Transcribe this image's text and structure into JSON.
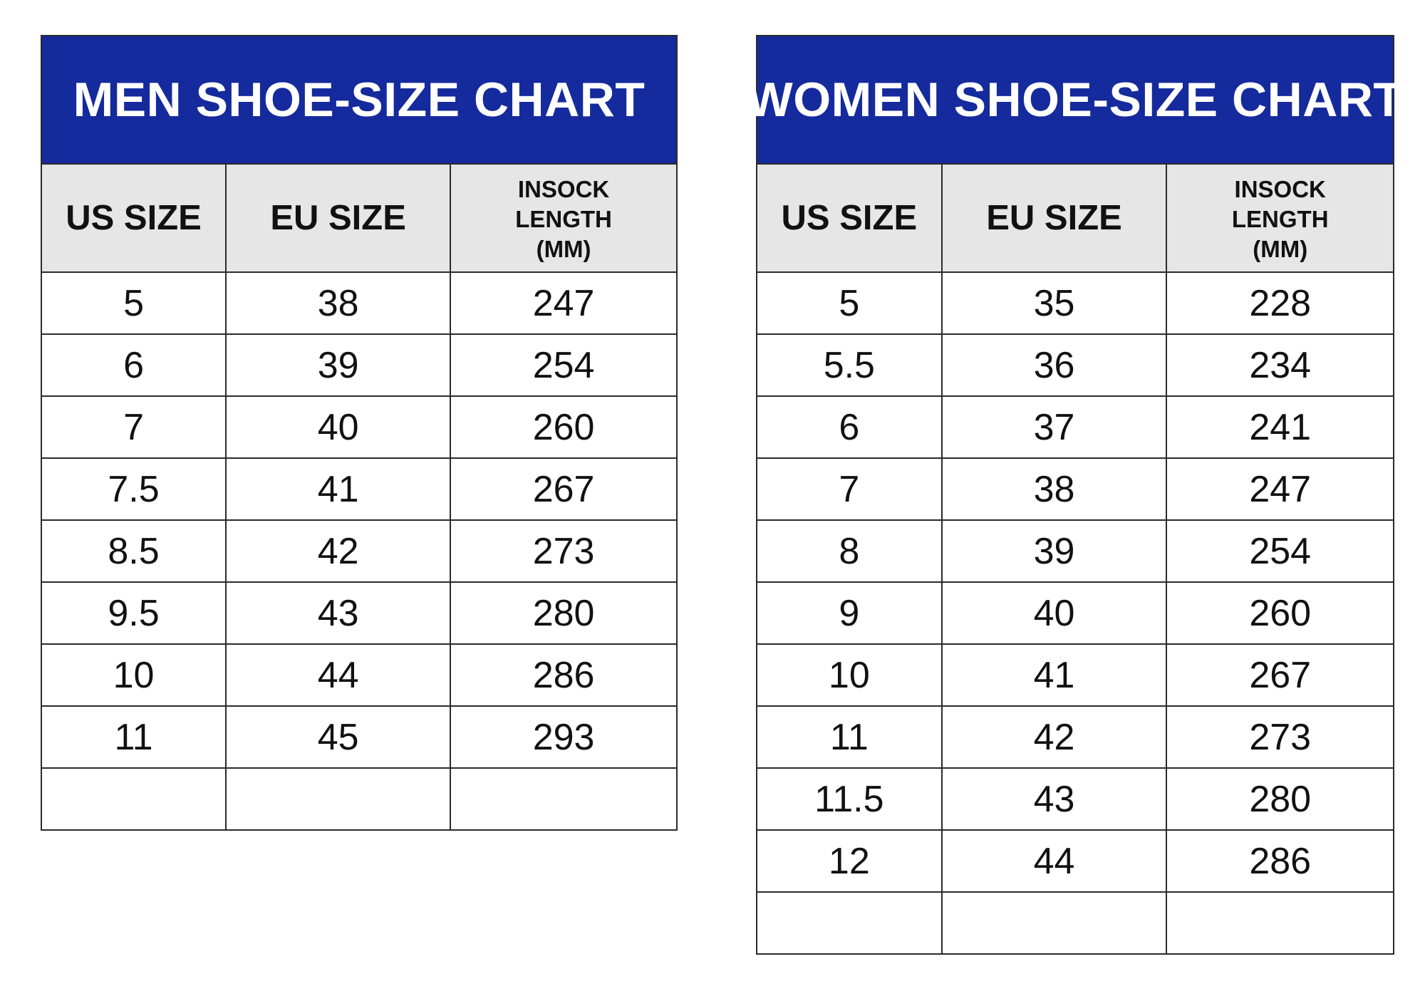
{
  "men": {
    "title": "MEN SHOE-SIZE CHART",
    "headers": {
      "us": "US SIZE",
      "eu": "EU SIZE",
      "insock_line1": "INSOCK",
      "insock_line2": "LENGTH",
      "insock_line3": "(MM)"
    },
    "rows": [
      {
        "us": "5",
        "eu": "38",
        "mm": "247"
      },
      {
        "us": "6",
        "eu": "39",
        "mm": "254"
      },
      {
        "us": "7",
        "eu": "40",
        "mm": "260"
      },
      {
        "us": "7.5",
        "eu": "41",
        "mm": "267"
      },
      {
        "us": "8.5",
        "eu": "42",
        "mm": "273"
      },
      {
        "us": "9.5",
        "eu": "43",
        "mm": "280"
      },
      {
        "us": "10",
        "eu": "44",
        "mm": "286"
      },
      {
        "us": "11",
        "eu": "45",
        "mm": "293"
      },
      {
        "us": "",
        "eu": "",
        "mm": ""
      }
    ]
  },
  "women": {
    "title": "WOMEN SHOE-SIZE CHART",
    "headers": {
      "us": "US SIZE",
      "eu": "EU SIZE",
      "insock_line1": "INSOCK",
      "insock_line2": "LENGTH",
      "insock_line3": "(MM)"
    },
    "rows": [
      {
        "us": "5",
        "eu": "35",
        "mm": "228"
      },
      {
        "us": "5.5",
        "eu": "36",
        "mm": "234"
      },
      {
        "us": "6",
        "eu": "37",
        "mm": "241"
      },
      {
        "us": "7",
        "eu": "38",
        "mm": "247"
      },
      {
        "us": "8",
        "eu": "39",
        "mm": "254"
      },
      {
        "us": "9",
        "eu": "40",
        "mm": "260"
      },
      {
        "us": "10",
        "eu": "41",
        "mm": "267"
      },
      {
        "us": "11",
        "eu": "42",
        "mm": "273"
      },
      {
        "us": "11.5",
        "eu": "43",
        "mm": "280"
      },
      {
        "us": "12",
        "eu": "44",
        "mm": "286"
      },
      {
        "us": "",
        "eu": "",
        "mm": ""
      }
    ]
  },
  "colors": {
    "title_background": "#152a9c",
    "header_background": "#e6e6e6",
    "border": "#2b2b2b"
  }
}
